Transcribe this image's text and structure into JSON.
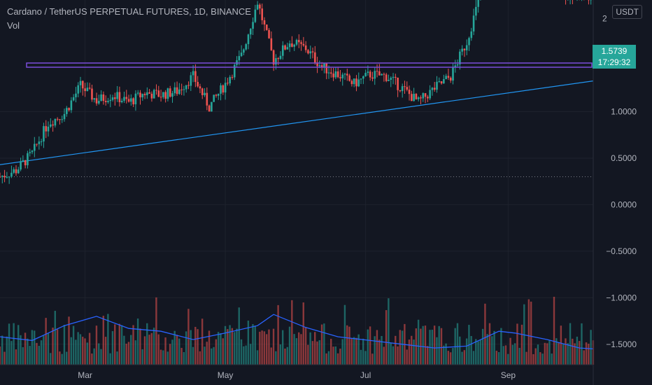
{
  "header": {
    "title": "Cardano / TetherUS PERPETUAL FUTURES, 1D, BINANCE",
    "indicator": "Vol",
    "currency_label": "USDT"
  },
  "price_badge": {
    "price": "1.5739",
    "countdown": "17:29:32"
  },
  "colors": {
    "background": "#131722",
    "up": "#26a69a",
    "down": "#ef5350",
    "resistance": "#7b4dd9",
    "trendline": "#2196f3",
    "volume_ma": "#2962ff",
    "axis_text": "#b2b5be",
    "grid": "#1e222d"
  },
  "chart_data": {
    "type": "candlestick",
    "title": "Cardano / TetherUS PERPETUAL FUTURES, 1D, BINANCE",
    "x_range": [
      "2021-01-23",
      "2021-10-08"
    ],
    "x_ticks": [
      {
        "label": "Mar",
        "date": "2021-03-01"
      },
      {
        "label": "May",
        "date": "2021-05-01"
      },
      {
        "label": "Jul",
        "date": "2021-07-01"
      },
      {
        "label": "Sep",
        "date": "2021-09-01"
      }
    ],
    "y_range": [
      -1.72,
      2.2
    ],
    "y_ticks": [
      {
        "label": "1.0000",
        "value": 1.0
      },
      {
        "label": "0.5000",
        "value": 0.5
      },
      {
        "label": "0.0000",
        "value": 0.0
      },
      {
        "label": "−0.5000",
        "value": -0.5
      },
      {
        "label": "−1.0000",
        "value": -1.0
      },
      {
        "label": "−1.5000",
        "value": -1.5
      }
    ],
    "y_top_partial_label": "2",
    "price_path": [
      [
        "2021-01-23",
        0.3
      ],
      [
        "2021-01-30",
        0.37
      ],
      [
        "2021-02-06",
        0.55
      ],
      [
        "2021-02-13",
        0.88
      ],
      [
        "2021-02-20",
        0.98
      ],
      [
        "2021-02-27",
        1.28
      ],
      [
        "2021-03-06",
        1.12
      ],
      [
        "2021-03-13",
        1.18
      ],
      [
        "2021-03-20",
        1.1
      ],
      [
        "2021-03-27",
        1.2
      ],
      [
        "2021-04-03",
        1.18
      ],
      [
        "2021-04-10",
        1.22
      ],
      [
        "2021-04-17",
        1.38
      ],
      [
        "2021-04-24",
        1.05
      ],
      [
        "2021-05-01",
        1.3
      ],
      [
        "2021-05-08",
        1.6
      ],
      [
        "2021-05-15",
        2.18
      ],
      [
        "2021-05-22",
        1.55
      ],
      [
        "2021-05-29",
        1.75
      ],
      [
        "2021-06-05",
        1.68
      ],
      [
        "2021-06-12",
        1.48
      ],
      [
        "2021-06-19",
        1.4
      ],
      [
        "2021-06-26",
        1.3
      ],
      [
        "2021-07-03",
        1.4
      ],
      [
        "2021-07-10",
        1.38
      ],
      [
        "2021-07-17",
        1.25
      ],
      [
        "2021-07-24",
        1.1
      ],
      [
        "2021-07-31",
        1.25
      ],
      [
        "2021-08-07",
        1.38
      ],
      [
        "2021-08-14",
        1.75
      ],
      [
        "2021-08-21",
        2.35
      ],
      [
        "2021-08-28",
        2.45
      ],
      [
        "2021-09-04",
        2.8
      ],
      [
        "2021-09-11",
        2.4
      ],
      [
        "2021-09-18",
        2.3
      ],
      [
        "2021-09-25",
        2.25
      ],
      [
        "2021-10-02",
        2.25
      ],
      [
        "2021-10-08",
        2.2
      ]
    ],
    "resistance_line": {
      "value": 1.5,
      "from": "2021-01-23",
      "to": "2021-10-08"
    },
    "trendline": {
      "from": [
        "2021-01-23",
        0.43
      ],
      "to": [
        "2021-10-08",
        1.33
      ]
    },
    "reference_line": {
      "value": 0.3
    },
    "volume": {
      "baseline_value": -1.72,
      "ma_path": [
        [
          "2021-01-23",
          -1.42
        ],
        [
          "2021-02-06",
          -1.46
        ],
        [
          "2021-02-20",
          -1.3
        ],
        [
          "2021-03-06",
          -1.2
        ],
        [
          "2021-03-20",
          -1.33
        ],
        [
          "2021-04-03",
          -1.36
        ],
        [
          "2021-04-17",
          -1.45
        ],
        [
          "2021-05-01",
          -1.38
        ],
        [
          "2021-05-15",
          -1.3
        ],
        [
          "2021-05-22",
          -1.18
        ],
        [
          "2021-06-05",
          -1.32
        ],
        [
          "2021-06-19",
          -1.42
        ],
        [
          "2021-07-03",
          -1.46
        ],
        [
          "2021-07-17",
          -1.5
        ],
        [
          "2021-07-31",
          -1.54
        ],
        [
          "2021-08-14",
          -1.52
        ],
        [
          "2021-08-28",
          -1.36
        ],
        [
          "2021-09-04",
          -1.38
        ],
        [
          "2021-09-18",
          -1.45
        ],
        [
          "2021-10-02",
          -1.54
        ],
        [
          "2021-10-08",
          -1.55
        ]
      ]
    }
  }
}
